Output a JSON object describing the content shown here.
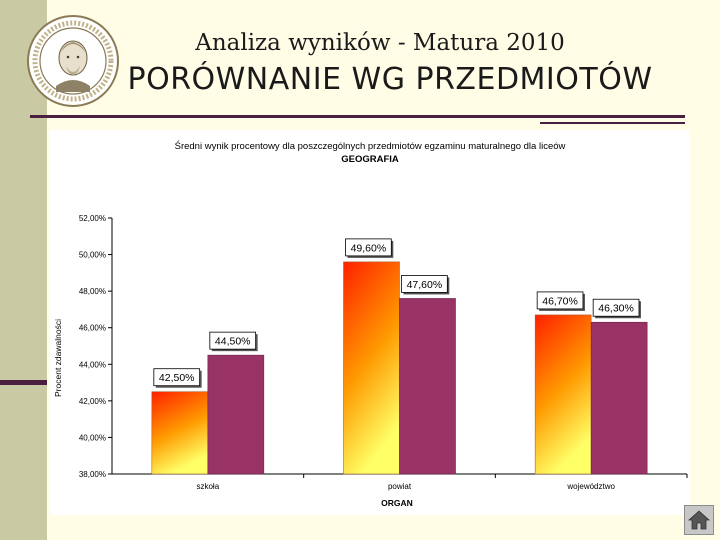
{
  "slide": {
    "title": "Analiza wyników  - Matura 2010",
    "subtitle": "PORÓWNANIE WG PRZEDMIOTÓW"
  },
  "colors": {
    "band": "#c9c9a3",
    "accent": "#4b1f3f",
    "series2": "#993366",
    "series1_top": "#ff2000",
    "series1_mid": "#ff9900",
    "series1_bottom": "#ffff66"
  },
  "icons": {
    "logo": "school-seal-logo",
    "home": "home-icon"
  },
  "chart_data": {
    "type": "bar",
    "title": "Średni wynik procentowy dla poszczególnych przedmiotów egzaminu maturalnego dla liceów",
    "subtitle": "GEOGRAFIA",
    "xlabel": "ORGAN",
    "ylabel": "Procent zdawalności",
    "ylim": [
      38,
      52
    ],
    "yticks": [
      "52,00%",
      "50,00%",
      "48,00%",
      "46,00%",
      "44,00%",
      "42,00%",
      "40,00%",
      "38,00%"
    ],
    "ytick_values": [
      52,
      50,
      48,
      46,
      44,
      42,
      40,
      38
    ],
    "categories": [
      "szkoła",
      "powiat",
      "województwo"
    ],
    "series": [
      {
        "values": [
          42.5,
          49.6,
          46.7
        ],
        "labels": [
          "42,50%",
          "49,60%",
          "46,70%"
        ]
      },
      {
        "values": [
          44.5,
          47.6,
          46.3
        ],
        "labels": [
          "44,50%",
          "47,60%",
          "46,30%"
        ]
      }
    ],
    "legend": "none",
    "grid": false
  }
}
